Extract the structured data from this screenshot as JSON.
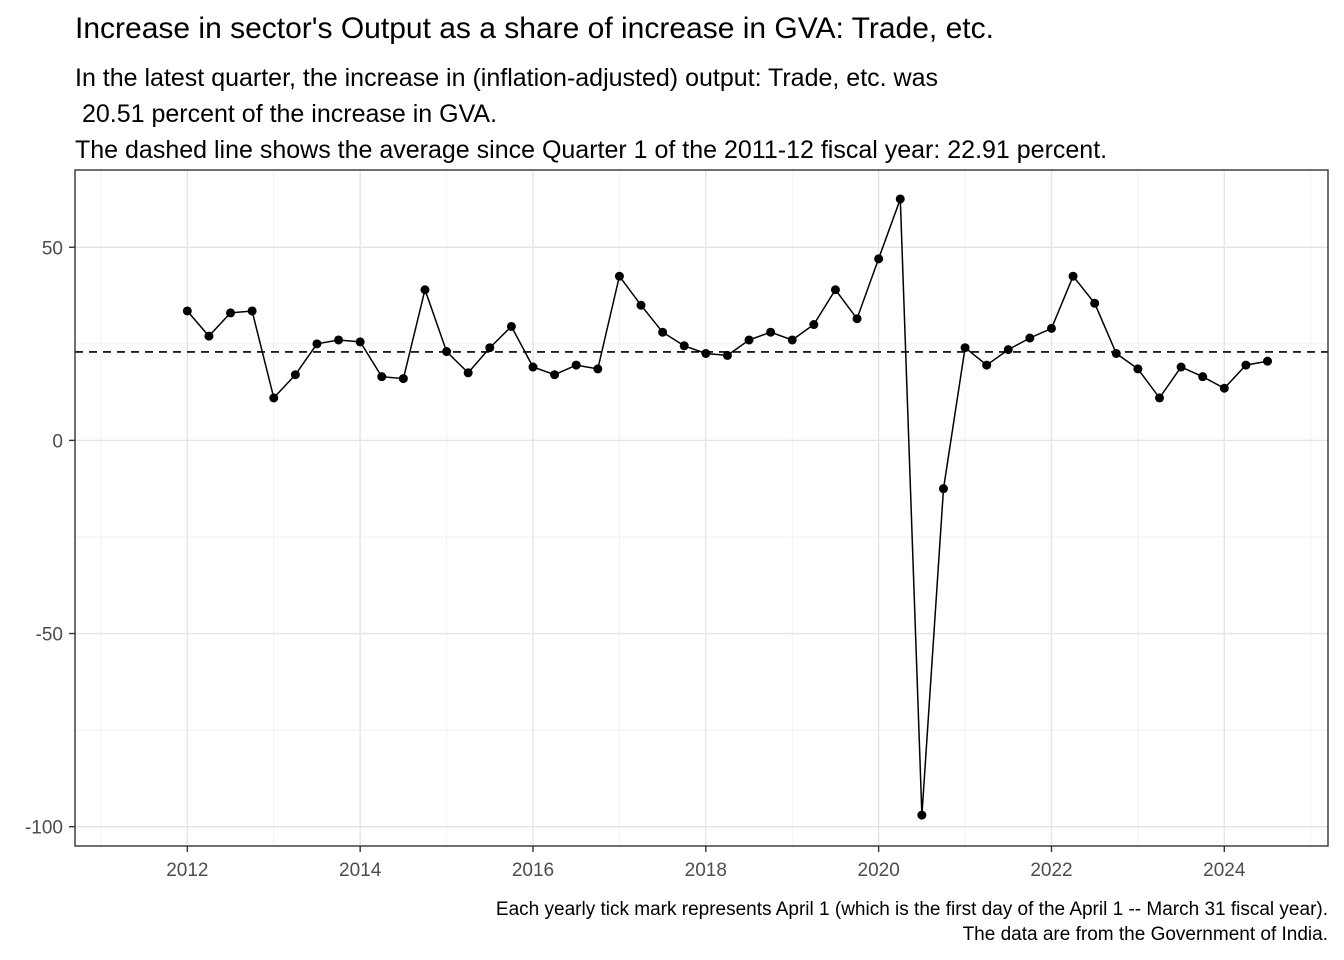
{
  "title": "Increase in sector's Output as a share of increase in GVA: Trade, etc.",
  "subtitle": "In the latest quarter, the increase in (inflation-adjusted) output: Trade, etc. was\n 20.51 percent of the increase in GVA.\nThe dashed line shows the average since Quarter 1 of the 2011-12 fiscal year: 22.91 percent.",
  "caption_line1": "Each yearly tick mark represents April 1 (which is the first day of the April 1 -- March 31 fiscal year).",
  "caption_line2": "The data are from the Government of India.",
  "chart_data": {
    "type": "line",
    "xlabel": "",
    "ylabel": "",
    "xlim": [
      2010.7,
      2025.2
    ],
    "ylim": [
      -105,
      70
    ],
    "x_ticks": [
      2012,
      2014,
      2016,
      2018,
      2020,
      2022,
      2024
    ],
    "x_tick_labels": [
      "2012",
      "2014",
      "2016",
      "2018",
      "2020",
      "2022",
      "2024"
    ],
    "y_ticks": [
      50,
      0,
      -50,
      -100
    ],
    "y_tick_labels": [
      "50",
      "0",
      "-50",
      "-100"
    ],
    "grid": true,
    "average_line": 22.91,
    "series": [
      {
        "x": [
          2012.0,
          2012.25,
          2012.5,
          2012.75,
          2013.0,
          2013.25,
          2013.5,
          2013.75,
          2014.0,
          2014.25,
          2014.5,
          2014.75,
          2015.0,
          2015.25,
          2015.5,
          2015.75,
          2016.0,
          2016.25,
          2016.5,
          2016.75,
          2017.0,
          2017.25,
          2017.5,
          2017.75,
          2018.0,
          2018.25,
          2018.5,
          2018.75,
          2019.0,
          2019.25,
          2019.5,
          2019.75,
          2020.0,
          2020.25,
          2020.5,
          2020.75,
          2021.0,
          2021.25,
          2021.5,
          2021.75,
          2022.0,
          2022.25,
          2022.5,
          2022.75,
          2023.0,
          2023.25,
          2023.5,
          2023.75,
          2024.0,
          2024.25,
          2024.5
        ],
        "values": [
          33.5,
          27.0,
          33.0,
          33.5,
          11.0,
          17.0,
          25.0,
          26.0,
          25.5,
          16.5,
          16.0,
          39.0,
          23.0,
          17.5,
          24.0,
          29.5,
          19.0,
          17.0,
          19.5,
          18.5,
          42.5,
          35.0,
          28.0,
          24.5,
          22.5,
          22.0,
          26.0,
          28.0,
          26.0,
          30.0,
          39.0,
          31.5,
          47.0,
          62.5,
          -97.0,
          -12.5,
          24.0,
          19.5,
          23.5,
          26.5,
          29.0,
          42.5,
          35.5,
          22.5,
          18.5,
          11.0,
          19.0,
          16.5,
          13.5,
          19.5,
          20.51
        ]
      }
    ]
  }
}
